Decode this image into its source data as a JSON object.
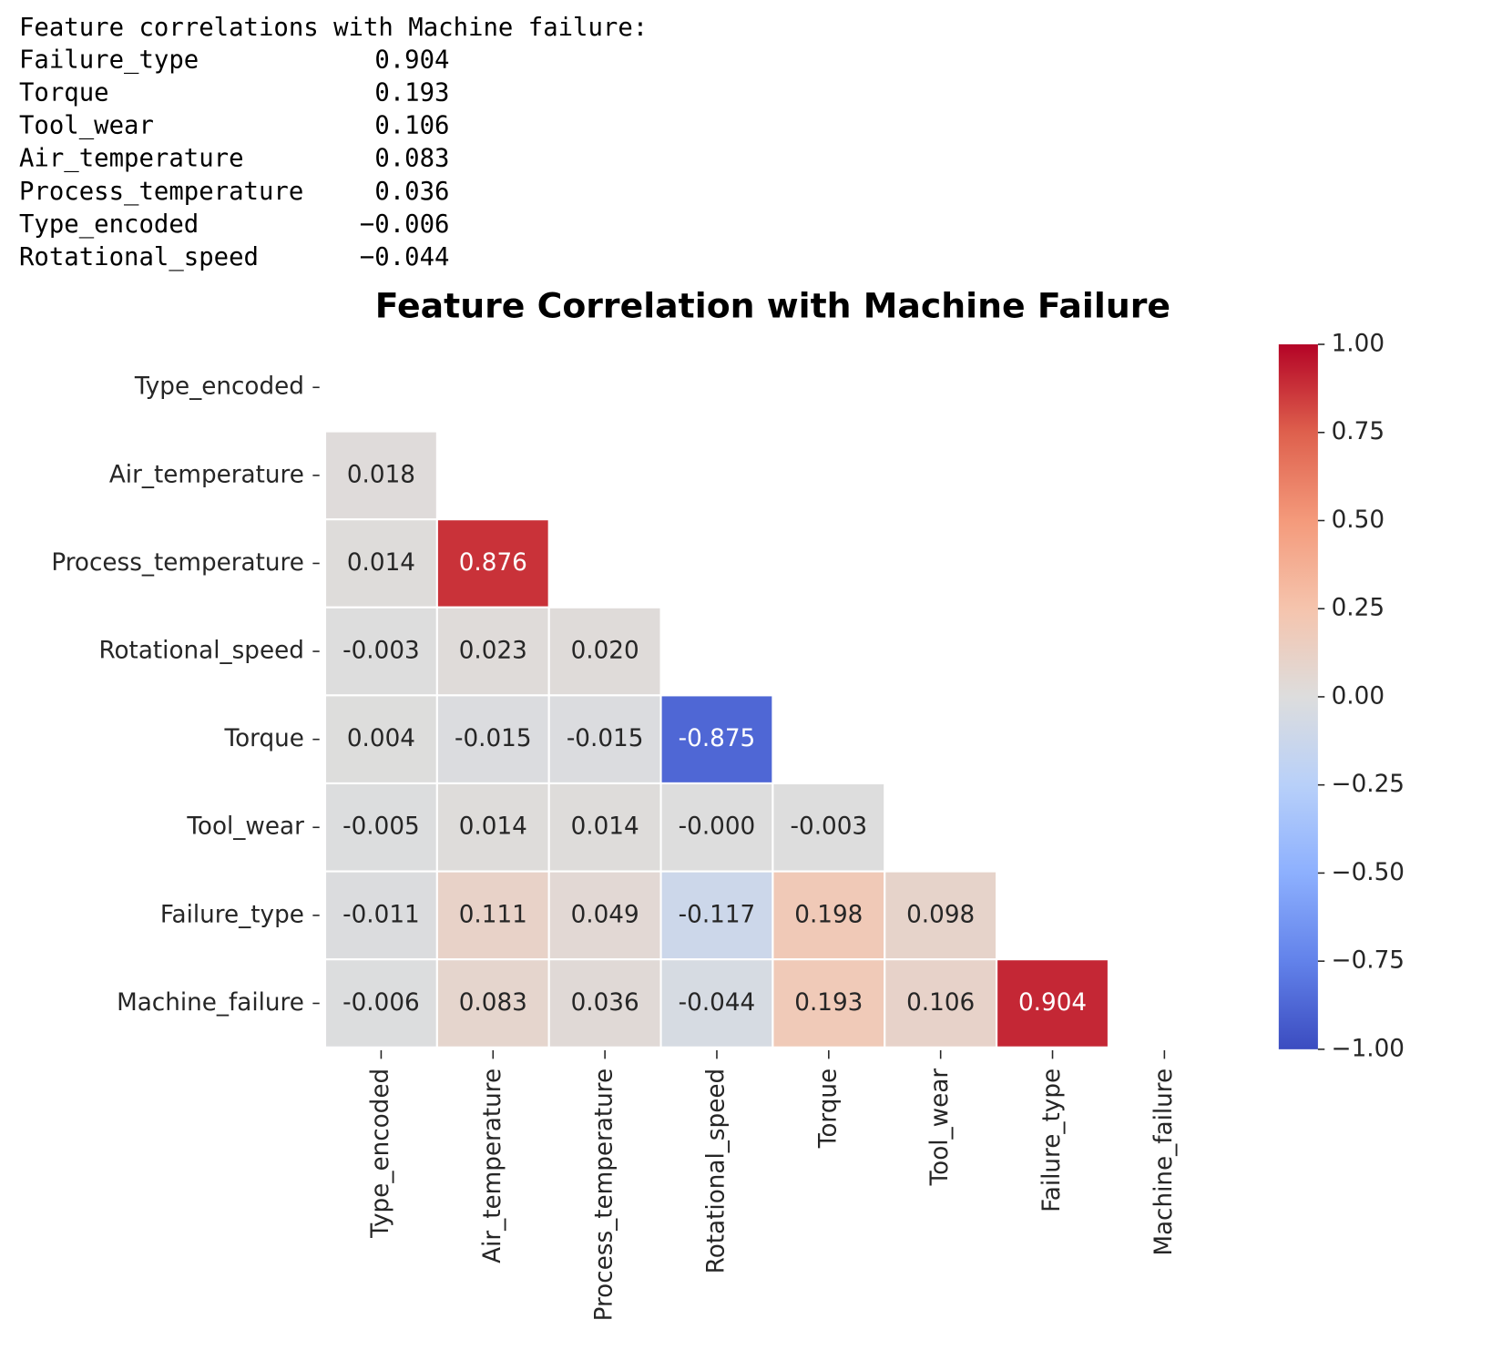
{
  "console": {
    "header": "Feature correlations with Machine failure:",
    "rows": [
      [
        "Failure_type",
        "0.904"
      ],
      [
        "Torque",
        "0.193"
      ],
      [
        "Tool_wear",
        "0.106"
      ],
      [
        "Air_temperature",
        "0.083"
      ],
      [
        "Process_temperature",
        "0.036"
      ],
      [
        "Type_encoded",
        "−0.006"
      ],
      [
        "Rotational_speed",
        "−0.044"
      ]
    ]
  },
  "chart_data": {
    "type": "heatmap",
    "title": "Feature Correlation with Machine Failure",
    "x": [
      "Type_encoded",
      "Air_temperature",
      "Process_temperature",
      "Rotational_speed",
      "Torque",
      "Tool_wear",
      "Failure_type",
      "Machine_failure"
    ],
    "y": [
      "Type_encoded",
      "Air_temperature",
      "Process_temperature",
      "Rotational_speed",
      "Torque",
      "Tool_wear",
      "Failure_type",
      "Machine_failure"
    ],
    "values": [
      [
        null,
        null,
        null,
        null,
        null,
        null,
        null,
        null
      ],
      [
        0.018,
        null,
        null,
        null,
        null,
        null,
        null,
        null
      ],
      [
        0.014,
        0.876,
        null,
        null,
        null,
        null,
        null,
        null
      ],
      [
        -0.003,
        0.023,
        0.02,
        null,
        null,
        null,
        null,
        null
      ],
      [
        0.004,
        -0.015,
        -0.015,
        -0.875,
        null,
        null,
        null,
        null
      ],
      [
        -0.005,
        0.014,
        0.014,
        0,
        -0.003,
        null,
        null,
        null
      ],
      [
        -0.011,
        0.111,
        0.049,
        -0.117,
        0.198,
        0.098,
        null,
        null
      ],
      [
        -0.006,
        0.083,
        0.036,
        -0.044,
        0.193,
        0.106,
        0.904,
        null
      ]
    ],
    "value_labels": [
      [
        null,
        null,
        null,
        null,
        null,
        null,
        null,
        null
      ],
      [
        "0.018",
        null,
        null,
        null,
        null,
        null,
        null,
        null
      ],
      [
        "0.014",
        "0.876",
        null,
        null,
        null,
        null,
        null,
        null
      ],
      [
        "-0.003",
        "0.023",
        "0.020",
        null,
        null,
        null,
        null,
        null
      ],
      [
        "0.004",
        "-0.015",
        "-0.015",
        "-0.875",
        null,
        null,
        null,
        null
      ],
      [
        "-0.005",
        "0.014",
        "0.014",
        "-0.000",
        "-0.003",
        null,
        null,
        null
      ],
      [
        "-0.011",
        "0.111",
        "0.049",
        "-0.117",
        "0.198",
        "0.098",
        null,
        null
      ],
      [
        "-0.006",
        "0.083",
        "0.036",
        "-0.044",
        "0.193",
        "0.106",
        "0.904",
        null
      ]
    ],
    "colormap": "coolwarm",
    "zlim": [
      -1,
      1
    ],
    "zticks": [
      {
        "value": 1,
        "label": "1.00"
      },
      {
        "value": 0.75,
        "label": "0.75"
      },
      {
        "value": 0.5,
        "label": "0.50"
      },
      {
        "value": 0.25,
        "label": "0.25"
      },
      {
        "value": 0,
        "label": "0.00"
      },
      {
        "value": -0.25,
        "label": "−0.25"
      },
      {
        "value": -0.5,
        "label": "−0.50"
      },
      {
        "value": -0.75,
        "label": "−0.75"
      },
      {
        "value": -1,
        "label": "−1.00"
      }
    ]
  }
}
